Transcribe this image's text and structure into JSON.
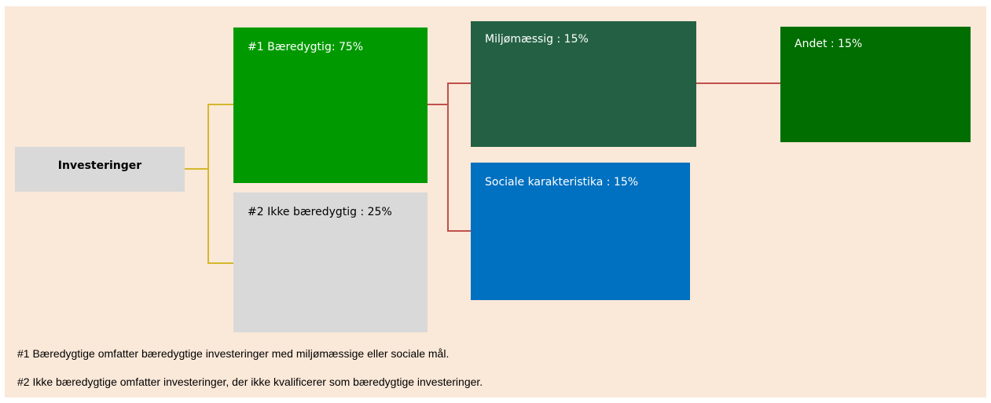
{
  "nodes": [
    {
      "label": "Investeringer"
    },
    {
      "label": "#1 Bæredygtig: 75%"
    },
    {
      "label": "#2 Ikke bæredygtig : 25%"
    },
    {
      "label": "Miljømæssig : 15%"
    },
    {
      "label": "Sociale karakteristika : 15%"
    },
    {
      "label": "Andet : 15%"
    }
  ],
  "notes": [
    "#1 Bæredygtige omfatter bæredygtige investeringer med miljømæssige eller sociale mål.",
    "#2 Ikke bæredygtige omfatter investeringer, der ikke kvalificerer som bæredygtige investeringer."
  ]
}
